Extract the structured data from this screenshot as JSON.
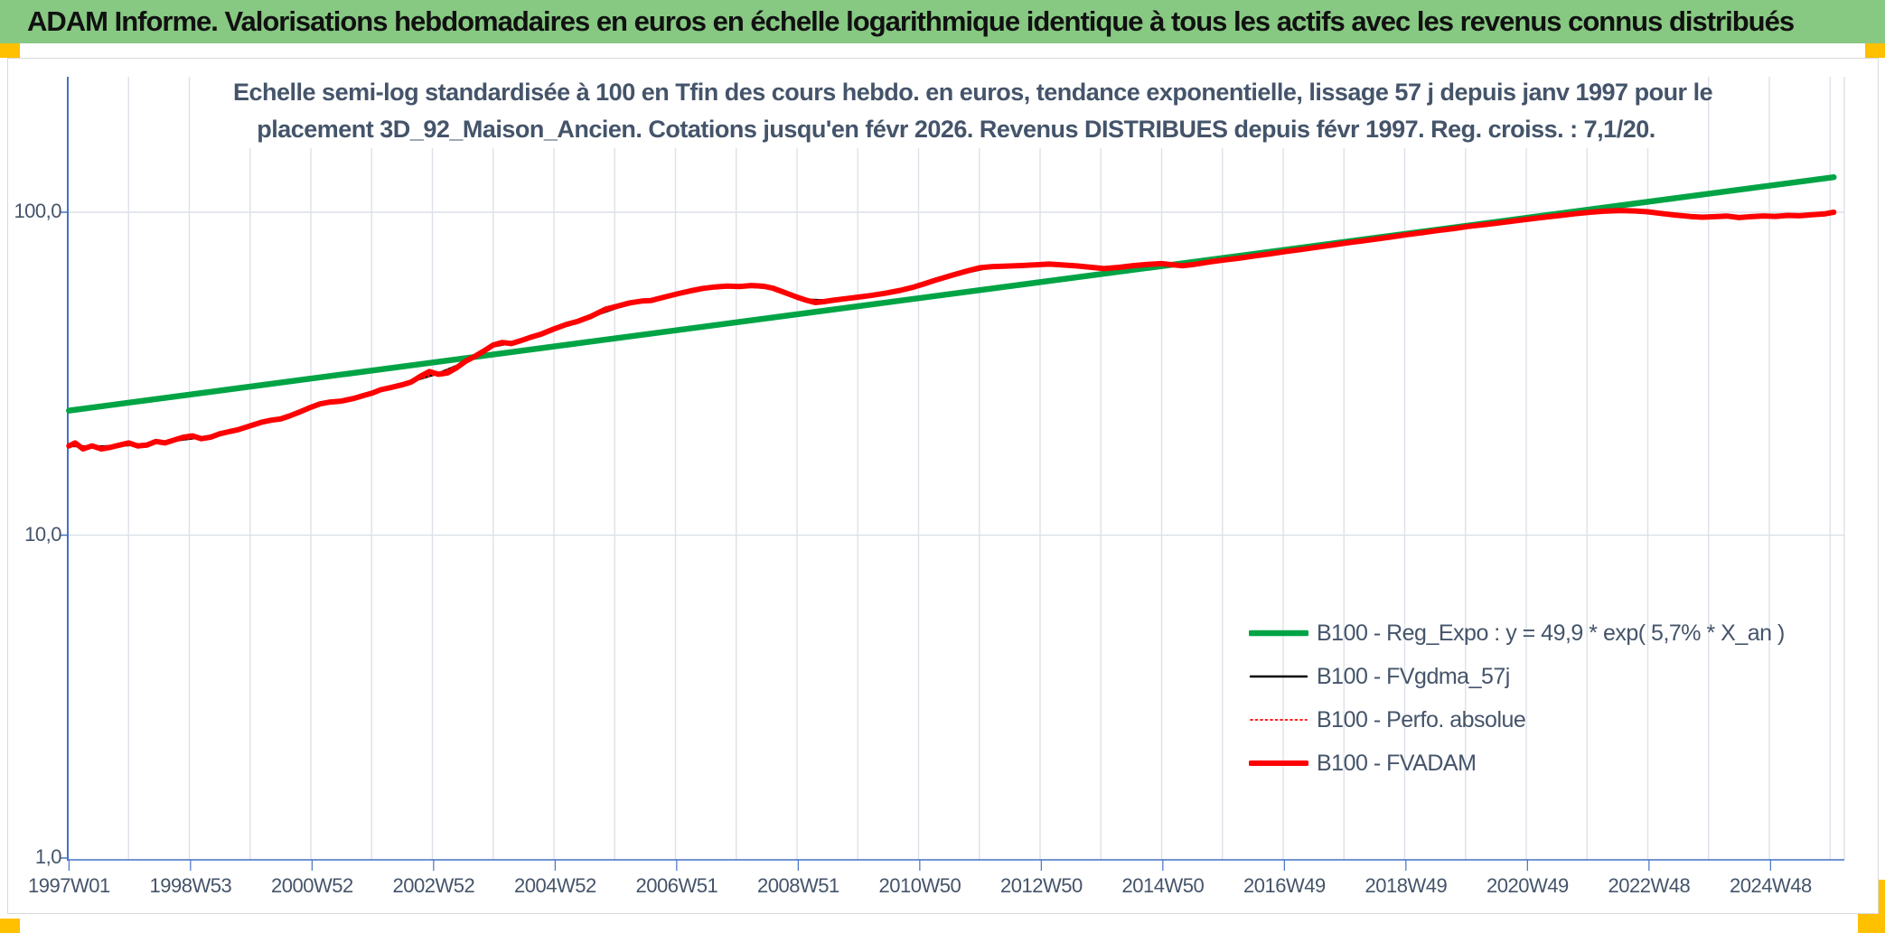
{
  "header": {
    "title": "ADAM Informe. Valorisations hebdomadaires en euros en échelle logarithmique identique à tous les actifs avec les revenus connus distribués"
  },
  "colors": {
    "header_bg": "#87C882",
    "accent_yellow": "#FFC000",
    "text_dark": "#44546A",
    "axis_blue": "#4472C4",
    "grid": "#DDE1E8",
    "green_line": "#00A445",
    "red_line": "#FE0000",
    "black_line": "#000000"
  },
  "chart_data": {
    "type": "line",
    "title_line1": "Echelle semi-log standardisée à 100 en Tfin des cours hebdo. en euros, tendance exponentielle, lissage 57 j depuis janv 1997 pour le",
    "title_line2": "placement 3D_92_Maison_Ancien. Cotations jusqu'en févr 2026. Revenus DISTRIBUES depuis févr 1997. Reg. croiss. : 7,1/20.",
    "x_axis": {
      "labels": [
        "1997W01",
        "1998W53",
        "2000W52",
        "2002W52",
        "2004W52",
        "2006W51",
        "2008W51",
        "2010W50",
        "2012W50",
        "2014W50",
        "2016W49",
        "2018W49",
        "2020W49",
        "2022W48",
        "2024W48"
      ],
      "start_year": 1997.02,
      "step_years": 2,
      "year_min": 1997,
      "year_max": 2026.24,
      "gridlines": "yearly"
    },
    "y_axis": {
      "scale": "log",
      "ticks": [
        {
          "label": "100,0",
          "value": 100
        },
        {
          "label": "10,0",
          "value": 10
        },
        {
          "label": "1,0",
          "value": 1
        }
      ]
    },
    "legend_position": "inside-right-lower",
    "series": [
      {
        "name": "B100 - Reg_Expo : y = 49,9 * exp( 5,7% *  X_an )",
        "color": "#00A445",
        "width": 6.5,
        "dash": "",
        "points": [
          [
            1997.02,
            24.3
          ],
          [
            2026.06,
            128.4
          ]
        ]
      },
      {
        "name": "B100 - FVgdma_57j",
        "color": "#000000",
        "width": 2.5,
        "dash": "",
        "points": [
          [
            1997.02,
            18.9
          ],
          [
            1997.4,
            18.8
          ],
          [
            1997.85,
            18.9
          ],
          [
            1998.3,
            19.2
          ],
          [
            1998.75,
            19.6
          ],
          [
            1999.2,
            20.1
          ],
          [
            1999.65,
            20.8
          ],
          [
            2000.2,
            22.3
          ],
          [
            2000.65,
            23.3
          ],
          [
            2001.15,
            25.3
          ],
          [
            2001.7,
            26.4
          ],
          [
            2002.15,
            28.1
          ],
          [
            2002.65,
            29.9
          ],
          [
            2003.1,
            31.7
          ],
          [
            2003.55,
            34.4
          ],
          [
            2004.0,
            38.4
          ],
          [
            2004.45,
            39.9
          ],
          [
            2005.0,
            43.4
          ],
          [
            2005.6,
            47.4
          ],
          [
            2006.25,
            52.2
          ],
          [
            2006.85,
            54.6
          ],
          [
            2007.45,
            57.9
          ],
          [
            2008.05,
            59.0
          ],
          [
            2008.6,
            58.1
          ],
          [
            2009.15,
            53.6
          ],
          [
            2009.6,
            53.3
          ],
          [
            2010.2,
            55.2
          ],
          [
            2010.9,
            58.3
          ],
          [
            2011.55,
            63.6
          ],
          [
            2012.2,
            67.6
          ],
          [
            2012.95,
            68.7
          ],
          [
            2013.6,
            68.3
          ],
          [
            2014.05,
            67.1
          ],
          [
            2014.8,
            68.9
          ],
          [
            2015.35,
            68.5
          ],
          [
            2015.8,
            70.1
          ],
          [
            2016.55,
            73.2
          ],
          [
            2017.3,
            76.6
          ],
          [
            2018.05,
            80.3
          ],
          [
            2018.8,
            83.9
          ],
          [
            2019.55,
            87.7
          ],
          [
            2020.3,
            91.4
          ],
          [
            2021.05,
            95.2
          ],
          [
            2021.8,
            98.7
          ],
          [
            2022.3,
            100.6
          ],
          [
            2022.8,
            100.8
          ],
          [
            2023.45,
            98.1
          ],
          [
            2023.9,
            96.7
          ],
          [
            2024.5,
            96.5
          ],
          [
            2025.1,
            97.2
          ],
          [
            2025.7,
            98.1
          ],
          [
            2026.06,
            99.8
          ]
        ]
      },
      {
        "name": "B100 - Perfo. absolue",
        "color": "#FE0000",
        "width": 1.8,
        "dash": "2 3.5",
        "points": [
          [
            1997.02,
            18.9
          ],
          [
            1997.4,
            18.8
          ],
          [
            1997.85,
            18.9
          ],
          [
            1998.3,
            19.2
          ],
          [
            1998.75,
            19.6
          ],
          [
            1999.2,
            20.1
          ],
          [
            1999.65,
            20.8
          ],
          [
            2000.2,
            22.3
          ],
          [
            2000.65,
            23.3
          ],
          [
            2001.15,
            25.3
          ],
          [
            2001.7,
            26.4
          ],
          [
            2002.15,
            28.1
          ],
          [
            2002.65,
            29.9
          ],
          [
            2003.1,
            31.7
          ],
          [
            2003.55,
            34.4
          ],
          [
            2004.0,
            38.4
          ],
          [
            2004.45,
            39.9
          ],
          [
            2005.0,
            43.4
          ],
          [
            2005.6,
            47.4
          ],
          [
            2006.25,
            52.2
          ],
          [
            2006.85,
            54.6
          ],
          [
            2007.45,
            57.9
          ],
          [
            2008.05,
            59.0
          ],
          [
            2008.6,
            58.1
          ],
          [
            2009.15,
            53.6
          ],
          [
            2009.6,
            53.3
          ],
          [
            2010.2,
            55.2
          ],
          [
            2010.9,
            58.3
          ],
          [
            2011.55,
            63.6
          ],
          [
            2012.2,
            67.6
          ],
          [
            2012.95,
            68.7
          ],
          [
            2013.6,
            68.3
          ],
          [
            2014.05,
            67.1
          ],
          [
            2014.8,
            68.9
          ],
          [
            2015.35,
            68.5
          ],
          [
            2015.8,
            70.1
          ],
          [
            2016.55,
            73.2
          ],
          [
            2017.3,
            76.6
          ],
          [
            2018.05,
            80.3
          ],
          [
            2018.8,
            83.9
          ],
          [
            2019.55,
            87.7
          ],
          [
            2020.3,
            91.4
          ],
          [
            2021.05,
            95.2
          ],
          [
            2021.8,
            98.7
          ],
          [
            2022.3,
            100.6
          ],
          [
            2022.8,
            100.8
          ],
          [
            2023.45,
            98.1
          ],
          [
            2023.9,
            96.7
          ],
          [
            2024.5,
            96.5
          ],
          [
            2025.1,
            97.2
          ],
          [
            2025.7,
            98.1
          ],
          [
            2026.06,
            99.8
          ]
        ]
      },
      {
        "name": "B100 - FVADAM",
        "color": "#FE0000",
        "width": 6,
        "dash": "",
        "points": [
          [
            1997.02,
            18.9
          ],
          [
            1997.12,
            19.3
          ],
          [
            1997.25,
            18.5
          ],
          [
            1997.4,
            18.9
          ],
          [
            1997.55,
            18.5
          ],
          [
            1997.7,
            18.7
          ],
          [
            1997.85,
            19.0
          ],
          [
            1998.0,
            19.3
          ],
          [
            1998.15,
            18.9
          ],
          [
            1998.3,
            19.0
          ],
          [
            1998.45,
            19.5
          ],
          [
            1998.6,
            19.3
          ],
          [
            1998.75,
            19.7
          ],
          [
            1998.9,
            20.1
          ],
          [
            1999.05,
            20.3
          ],
          [
            1999.2,
            19.9
          ],
          [
            1999.35,
            20.1
          ],
          [
            1999.5,
            20.6
          ],
          [
            1999.65,
            20.9
          ],
          [
            1999.8,
            21.2
          ],
          [
            2000.0,
            21.8
          ],
          [
            2000.2,
            22.4
          ],
          [
            2000.35,
            22.7
          ],
          [
            2000.5,
            22.9
          ],
          [
            2000.65,
            23.4
          ],
          [
            2000.8,
            24.0
          ],
          [
            2001.0,
            24.9
          ],
          [
            2001.15,
            25.5
          ],
          [
            2001.3,
            25.8
          ],
          [
            2001.5,
            26.0
          ],
          [
            2001.7,
            26.5
          ],
          [
            2001.85,
            27.0
          ],
          [
            2002.0,
            27.5
          ],
          [
            2002.15,
            28.2
          ],
          [
            2002.3,
            28.6
          ],
          [
            2002.5,
            29.2
          ],
          [
            2002.65,
            29.8
          ],
          [
            2002.8,
            31.0
          ],
          [
            2002.95,
            32.1
          ],
          [
            2003.1,
            31.5
          ],
          [
            2003.25,
            31.8
          ],
          [
            2003.4,
            33.0
          ],
          [
            2003.55,
            34.6
          ],
          [
            2003.7,
            35.8
          ],
          [
            2003.85,
            37.2
          ],
          [
            2004.0,
            38.8
          ],
          [
            2004.15,
            39.5
          ],
          [
            2004.3,
            39.2
          ],
          [
            2004.45,
            40.0
          ],
          [
            2004.6,
            40.9
          ],
          [
            2004.8,
            42.0
          ],
          [
            2005.0,
            43.5
          ],
          [
            2005.2,
            44.9
          ],
          [
            2005.4,
            46.0
          ],
          [
            2005.6,
            47.5
          ],
          [
            2005.85,
            50.1
          ],
          [
            2006.05,
            51.2
          ],
          [
            2006.25,
            52.4
          ],
          [
            2006.45,
            53.1
          ],
          [
            2006.6,
            53.3
          ],
          [
            2006.85,
            54.8
          ],
          [
            2007.05,
            56.0
          ],
          [
            2007.25,
            57.1
          ],
          [
            2007.45,
            58.1
          ],
          [
            2007.65,
            58.7
          ],
          [
            2007.85,
            59.1
          ],
          [
            2008.05,
            58.9
          ],
          [
            2008.25,
            59.3
          ],
          [
            2008.45,
            59.0
          ],
          [
            2008.6,
            58.2
          ],
          [
            2008.8,
            56.4
          ],
          [
            2009.0,
            54.6
          ],
          [
            2009.15,
            53.4
          ],
          [
            2009.3,
            52.5
          ],
          [
            2009.45,
            52.9
          ],
          [
            2009.6,
            53.4
          ],
          [
            2009.8,
            54.0
          ],
          [
            2010.0,
            54.6
          ],
          [
            2010.2,
            55.2
          ],
          [
            2010.45,
            56.1
          ],
          [
            2010.7,
            57.3
          ],
          [
            2010.9,
            58.5
          ],
          [
            2011.1,
            60.1
          ],
          [
            2011.3,
            61.8
          ],
          [
            2011.55,
            63.8
          ],
          [
            2011.8,
            65.8
          ],
          [
            2012.0,
            67.3
          ],
          [
            2012.2,
            67.8
          ],
          [
            2012.45,
            68.1
          ],
          [
            2012.7,
            68.4
          ],
          [
            2012.95,
            68.8
          ],
          [
            2013.15,
            69.1
          ],
          [
            2013.35,
            68.7
          ],
          [
            2013.6,
            68.2
          ],
          [
            2013.85,
            67.5
          ],
          [
            2014.05,
            66.9
          ],
          [
            2014.3,
            67.5
          ],
          [
            2014.55,
            68.4
          ],
          [
            2014.8,
            69.0
          ],
          [
            2015.0,
            69.3
          ],
          [
            2015.2,
            68.7
          ],
          [
            2015.35,
            68.3
          ],
          [
            2015.55,
            69.0
          ],
          [
            2015.8,
            70.2
          ],
          [
            2016.05,
            71.2
          ],
          [
            2016.3,
            72.2
          ],
          [
            2016.55,
            73.3
          ],
          [
            2016.8,
            74.4
          ],
          [
            2017.05,
            75.6
          ],
          [
            2017.3,
            76.7
          ],
          [
            2017.55,
            77.9
          ],
          [
            2017.8,
            79.1
          ],
          [
            2018.05,
            80.4
          ],
          [
            2018.3,
            81.5
          ],
          [
            2018.55,
            82.7
          ],
          [
            2018.8,
            84.0
          ],
          [
            2019.05,
            85.3
          ],
          [
            2019.3,
            86.5
          ],
          [
            2019.55,
            87.8
          ],
          [
            2019.8,
            89.0
          ],
          [
            2020.05,
            90.4
          ],
          [
            2020.3,
            91.5
          ],
          [
            2020.55,
            92.7
          ],
          [
            2020.8,
            94.0
          ],
          [
            2021.05,
            95.3
          ],
          [
            2021.3,
            96.5
          ],
          [
            2021.55,
            97.7
          ],
          [
            2021.8,
            98.9
          ],
          [
            2022.05,
            100.0
          ],
          [
            2022.3,
            100.8
          ],
          [
            2022.55,
            101.2
          ],
          [
            2022.8,
            100.9
          ],
          [
            2023.0,
            100.3
          ],
          [
            2023.2,
            99.2
          ],
          [
            2023.45,
            98.0
          ],
          [
            2023.7,
            97.0
          ],
          [
            2023.9,
            96.5
          ],
          [
            2024.1,
            96.9
          ],
          [
            2024.3,
            97.3
          ],
          [
            2024.5,
            96.3
          ],
          [
            2024.7,
            96.9
          ],
          [
            2024.9,
            97.4
          ],
          [
            2025.1,
            97.1
          ],
          [
            2025.3,
            97.8
          ],
          [
            2025.5,
            97.5
          ],
          [
            2025.7,
            98.2
          ],
          [
            2025.9,
            98.8
          ],
          [
            2026.06,
            100.0
          ]
        ]
      }
    ]
  }
}
